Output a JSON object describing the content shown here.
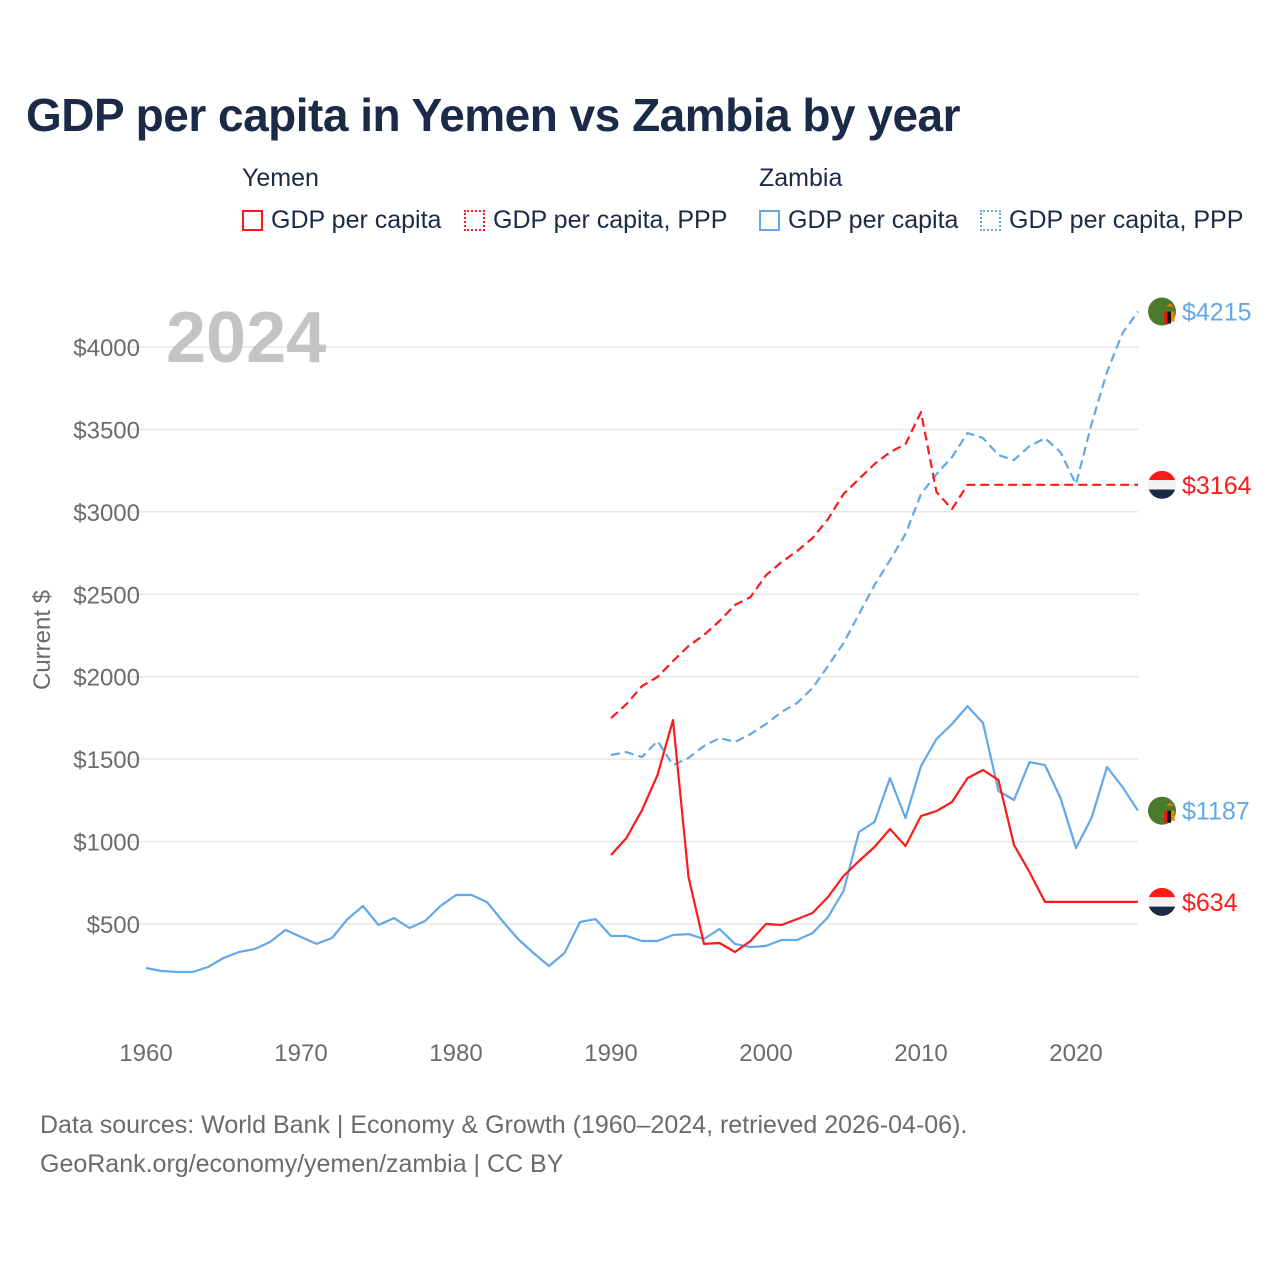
{
  "title": "GDP per capita in Yemen vs Zambia by year",
  "legend": {
    "groups": [
      {
        "name": "Yemen",
        "items": [
          "GDP per capita",
          "GDP per capita, PPP"
        ]
      },
      {
        "name": "Zambia",
        "items": [
          "GDP per capita",
          "GDP per capita, PPP"
        ]
      }
    ]
  },
  "year_watermark": "2024",
  "end_labels": {
    "zambia_ppp": "$4215",
    "yemen_ppp": "$3164",
    "zambia_gdp": "$1187",
    "yemen_gdp": "$634"
  },
  "source": {
    "line1": "Data sources: World Bank | Economy & Growth (1960–2024, retrieved 2026-04-06).",
    "line2": "GeoRank.org/economy/yemen/zambia | CC BY"
  },
  "colors": {
    "yemen": "#ff1a1a",
    "zambia": "#62a8e8"
  },
  "chart_data": {
    "type": "line",
    "title": "GDP per capita in Yemen vs Zambia by year",
    "xlabel": "",
    "ylabel": "Current $",
    "xlim": [
      1960,
      2024
    ],
    "ylim": [
      0,
      4300
    ],
    "x_ticks": [
      1960,
      1970,
      1980,
      1990,
      2000,
      2010,
      2020
    ],
    "x_tick_labels": [
      "1960",
      "1970",
      "1980",
      "1990",
      "2000",
      "2010",
      "2020"
    ],
    "y_ticks": [
      500,
      1000,
      1500,
      2000,
      2500,
      3000,
      3500,
      4000
    ],
    "y_tick_labels": [
      "$500",
      "$1000",
      "$1500",
      "$2000",
      "$2500",
      "$3000",
      "$3500",
      "$4000"
    ],
    "grid": true,
    "legend_position": "top",
    "series": [
      {
        "name": "Zambia GDP per capita",
        "country": "zambia",
        "style": "solid",
        "start": 1960,
        "values": [
          233,
          215,
          209,
          209,
          239,
          294,
          330,
          348,
          391,
          464,
          421,
          379,
          415,
          530,
          609,
          494,
          536,
          476,
          518,
          609,
          676,
          676,
          633,
          518,
          409,
          324,
          245,
          324,
          512,
          530,
          427,
          427,
          397,
          397,
          433,
          439,
          409,
          470,
          379,
          360,
          367,
          403,
          403,
          445,
          542,
          700,
          1058,
          1119,
          1385,
          1143,
          1458,
          1622,
          1713,
          1822,
          1719,
          1306,
          1252,
          1482,
          1464,
          1264,
          961,
          1143,
          1452,
          1331,
          1187
        ]
      },
      {
        "name": "Zambia GDP per capita, PPP",
        "country": "zambia",
        "style": "dashed",
        "start": 1990,
        "values": [
          1525,
          1543,
          1513,
          1610,
          1464,
          1507,
          1580,
          1628,
          1604,
          1652,
          1713,
          1786,
          1840,
          1931,
          2065,
          2204,
          2380,
          2556,
          2707,
          2865,
          3108,
          3229,
          3332,
          3478,
          3448,
          3344,
          3314,
          3399,
          3447,
          3362,
          3168,
          3532,
          3848,
          4084,
          4215
        ]
      },
      {
        "name": "Yemen GDP per capita",
        "country": "yemen",
        "style": "solid",
        "start": 1990,
        "values": [
          918,
          1022,
          1191,
          1404,
          1737,
          785,
          379,
          385,
          330,
          397,
          500,
          494,
          530,
          567,
          664,
          791,
          882,
          967,
          1076,
          973,
          1155,
          1185,
          1240,
          1385,
          1434,
          1373,
          979,
          815,
          634,
          634,
          634,
          634,
          634,
          634,
          634
        ]
      },
      {
        "name": "Yemen GDP per capita, PPP",
        "country": "yemen",
        "style": "dashed",
        "start": 1990,
        "values": [
          1749,
          1834,
          1943,
          1998,
          2095,
          2186,
          2253,
          2338,
          2435,
          2483,
          2616,
          2695,
          2762,
          2841,
          2956,
          3108,
          3199,
          3290,
          3362,
          3411,
          3605,
          3120,
          3017,
          3164,
          3164,
          3164,
          3164,
          3164,
          3164,
          3164,
          3164,
          3164,
          3164,
          3164,
          3164
        ]
      }
    ]
  }
}
